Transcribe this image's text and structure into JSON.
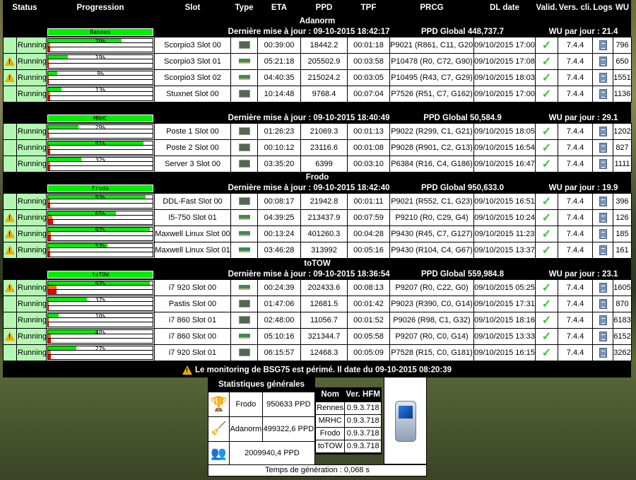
{
  "header": [
    "Status",
    "Progression",
    "Slot",
    "Type",
    "ETA",
    "PPD",
    "TPF",
    "PRCG",
    "DL date",
    "Valid.",
    "Vers. cli.",
    "Logs",
    "WU"
  ],
  "colors": {
    "running_bg": "#b3f7b3",
    "progress_green": "#00ee00",
    "orange": "#ee7700",
    "red": "#ee0000"
  },
  "groups": [
    {
      "name": "Adanorm",
      "machine": "Rennes",
      "update": "Dernière mise à jour : 09-10-2015 18:42:17",
      "ppd": "PPD Global 448,737.7",
      "wu": "WU par jour : 21.4",
      "rows": [
        {
          "warn": false,
          "status": "Running",
          "pct": 70,
          "pct_label": "70%",
          "orange": 2,
          "red": 2,
          "slot": "Scorpio3 Slot 00",
          "type": "cpu",
          "eta": "00:39:00",
          "ppd": "18442.2",
          "tpf": "00:01:18",
          "prcg": "P9021 (R861, C11, G20)",
          "dl": "09/10/2015 17:00",
          "ver": "7.4.4",
          "wu": "796"
        },
        {
          "warn": true,
          "status": "Running",
          "pct": 19,
          "pct_label": "19%",
          "orange": 1,
          "red": 1,
          "slot": "Scorpio3 Slot 01",
          "type": "gpu",
          "eta": "05:21:18",
          "ppd": "205502.9",
          "tpf": "00:03:58",
          "prcg": "P10478 (R0, C72, G90)",
          "dl": "09/10/2015 17:08",
          "ver": "7.4.4",
          "wu": "650"
        },
        {
          "warn": true,
          "status": "Running",
          "pct": 9,
          "pct_label": "9%",
          "orange": 1,
          "red": 1,
          "slot": "Scorpio3 Slot 02",
          "type": "gpu",
          "eta": "04:40:35",
          "ppd": "215024.2",
          "tpf": "00:03:05",
          "prcg": "P10495 (R43, C7, G29)",
          "dl": "09/10/2015 18:03",
          "ver": "7.4.4",
          "wu": "1551"
        },
        {
          "warn": false,
          "status": "Running",
          "pct": 13,
          "pct_label": "13%",
          "orange": 2,
          "red": 2,
          "slot": "Stuxnet Slot 00",
          "type": "cpu",
          "eta": "10:14:48",
          "ppd": "9768.4",
          "tpf": "00:07:04",
          "prcg": "P7526 (R51, C7, G162)",
          "dl": "09/10/2015 17:00",
          "ver": "7.4.4",
          "wu": "1136"
        }
      ]
    },
    {
      "name": "",
      "machine": "MRHC",
      "update": "Dernière mise à jour : 09-10-2015 18:40:49",
      "ppd": "PPD Global 50,584.9",
      "wu": "WU par jour : 29.1",
      "rows": [
        {
          "warn": false,
          "status": "Running",
          "pct": 29,
          "pct_label": "29%",
          "orange": 1,
          "red": 1,
          "slot": "Poste 1 Slot 00",
          "type": "cpu",
          "eta": "01:26:23",
          "ppd": "21069.3",
          "tpf": "00:01:13",
          "prcg": "P9022 (R299, C1, G21)",
          "dl": "09/10/2015 18:05",
          "ver": "7.4.4",
          "wu": "1202"
        },
        {
          "warn": false,
          "status": "Running",
          "pct": 91,
          "pct_label": "91%",
          "orange": 2,
          "red": 2,
          "slot": "Poste 2 Slot 00",
          "type": "cpu",
          "eta": "00:10:12",
          "ppd": "23116.6",
          "tpf": "00:01:08",
          "prcg": "P9028 (R901, C2, G13)",
          "dl": "09/10/2015 16:54",
          "ver": "7.4.4",
          "wu": "827"
        },
        {
          "warn": false,
          "status": "Running",
          "pct": 32,
          "pct_label": "32%",
          "orange": 2,
          "red": 2,
          "slot": "Server 3 Slot 00",
          "type": "cpu",
          "eta": "03:35:20",
          "ppd": "6399",
          "tpf": "00:03:10",
          "prcg": "P6384 (R16, C4, G186)",
          "dl": "09/10/2015 16:47",
          "ver": "7.4.4",
          "wu": "1111"
        }
      ]
    },
    {
      "name": "Frodo",
      "machine": "Frodo",
      "update": "Dernière mise à jour : 09-10-2015 18:42:40",
      "ppd": "PPD Global 950,633.0",
      "wu": "WU par jour : 19.9",
      "rows": [
        {
          "warn": false,
          "status": "Running",
          "pct": 93,
          "pct_label": "93%",
          "orange": 2,
          "red": 2,
          "slot": "DDL-Fast Slot 00",
          "type": "cpu",
          "eta": "00:08:17",
          "ppd": "21942.8",
          "tpf": "00:01:11",
          "prcg": "P9021 (R552, C1, G23)",
          "dl": "09/10/2015 16:51",
          "ver": "7.4.4",
          "wu": "396"
        },
        {
          "warn": true,
          "status": "Running",
          "pct": 65,
          "pct_label": "65%",
          "orange": 4,
          "red": 5,
          "slot": "I5-750 Slot 01",
          "type": "gpu",
          "eta": "04:39:25",
          "ppd": "213437.9",
          "tpf": "00:07:59",
          "prcg": "P9210 (R0, C29, G4)",
          "dl": "09/10/2015 10:24",
          "ver": "7.4.4",
          "wu": "126"
        },
        {
          "warn": true,
          "status": "Running",
          "pct": 97,
          "pct_label": "97%",
          "orange": 3,
          "red": 3,
          "slot": "Maxwell Linux Slot 00",
          "type": "gpu",
          "eta": "00:13:24",
          "ppd": "401260.3",
          "tpf": "00:04:28",
          "prcg": "P9430 (R45, C7, G127)",
          "dl": "09/10/2015 11:23",
          "ver": "7.4.4",
          "wu": "185"
        },
        {
          "warn": true,
          "status": "Running",
          "pct": 57,
          "pct_label": "57%",
          "orange": 2,
          "red": 2,
          "slot": "Maxwell Linux Slot 01",
          "type": "gpu",
          "eta": "03:46:28",
          "ppd": "313992",
          "tpf": "00:05:16",
          "prcg": "P9430 (R104, C4, G67)",
          "dl": "09/10/2015 13:37",
          "ver": "7.4.4",
          "wu": "161"
        }
      ]
    },
    {
      "name": "toTOW",
      "machine": "toTOW",
      "update": "Dernière mise à jour : 09-10-2015 18:36:54",
      "ppd": "PPD Global 559,984.8",
      "wu": "WU par jour : 23.1",
      "rows": [
        {
          "warn": true,
          "status": "Running",
          "pct": 97,
          "pct_label": "97%",
          "orange": 8,
          "red": 8,
          "slot": "i7 920 Slot 00",
          "type": "gpu",
          "eta": "00:24:39",
          "ppd": "202433.6",
          "tpf": "00:08:13",
          "prcg": "P9207 (R0, C22, G0)",
          "dl": "09/10/2015 05:25",
          "ver": "7.4.4",
          "wu": "1605"
        },
        {
          "warn": false,
          "status": "Running",
          "pct": 37,
          "pct_label": "37%",
          "orange": 1,
          "red": 1,
          "slot": "Pastis Slot 00",
          "type": "cpu",
          "eta": "01:47:06",
          "ppd": "12681.5",
          "tpf": "00:01:42",
          "prcg": "P9023 (R390, C0, G14)",
          "dl": "09/10/2015 17:31",
          "ver": "7.4.4",
          "wu": "870"
        },
        {
          "warn": false,
          "status": "Running",
          "pct": 10,
          "pct_label": "10%",
          "orange": 0.5,
          "red": 0.5,
          "slot": "i7 860 Slot 01",
          "type": "cpu",
          "eta": "02:48:00",
          "ppd": "11056.7",
          "tpf": "00:01:52",
          "prcg": "P9026 (R98, C1, G32)",
          "dl": "09/10/2015 18:16",
          "ver": "7.4.4",
          "wu": "6183"
        },
        {
          "warn": true,
          "status": "Running",
          "pct": 48,
          "pct_label": "48%",
          "orange": 3,
          "red": 3,
          "slot": "i7 860 Slot 00",
          "type": "gpu",
          "eta": "05:10:16",
          "ppd": "321344.7",
          "tpf": "00:05:58",
          "prcg": "P9207 (R0, C0, G14)",
          "dl": "09/10/2015 13:33",
          "ver": "7.4.4",
          "wu": "6152"
        },
        {
          "warn": false,
          "status": "Running",
          "pct": 27,
          "pct_label": "27%",
          "orange": 3,
          "red": 3,
          "slot": "i7 920 Slot 01",
          "type": "cpu",
          "eta": "06:15:57",
          "ppd": "12468.3",
          "tpf": "00:05:09",
          "prcg": "P7528 (R15, C0, G181)",
          "dl": "09/10/2015 16:15",
          "ver": "7.4.4",
          "wu": "3262"
        }
      ]
    }
  ],
  "stale_message": "Le monitoring de BSG75 est périmé. Il date du 09-10-2015 08:20:39",
  "stats": {
    "title": "Statistiques générales",
    "top": [
      {
        "icon": "trophy-icon",
        "name": "Frodo",
        "ppd": "950633 PPD"
      },
      {
        "icon": "broom-icon",
        "name": "Adanorm",
        "ppd": "499322,6 PPD"
      }
    ],
    "total": {
      "icon": "users-icon",
      "ppd": "2009940,4 PPD"
    },
    "versions_header": [
      "Nom",
      "Ver. HFM"
    ],
    "versions": [
      [
        "Rennes",
        "0.9.3.718"
      ],
      [
        "MRHC",
        "0.9.3.718"
      ],
      [
        "Frodo",
        "0.9.3.718"
      ],
      [
        "toTOW",
        "0.9.3.718"
      ]
    ],
    "generation": "Temps de génération : 0,068 s"
  }
}
